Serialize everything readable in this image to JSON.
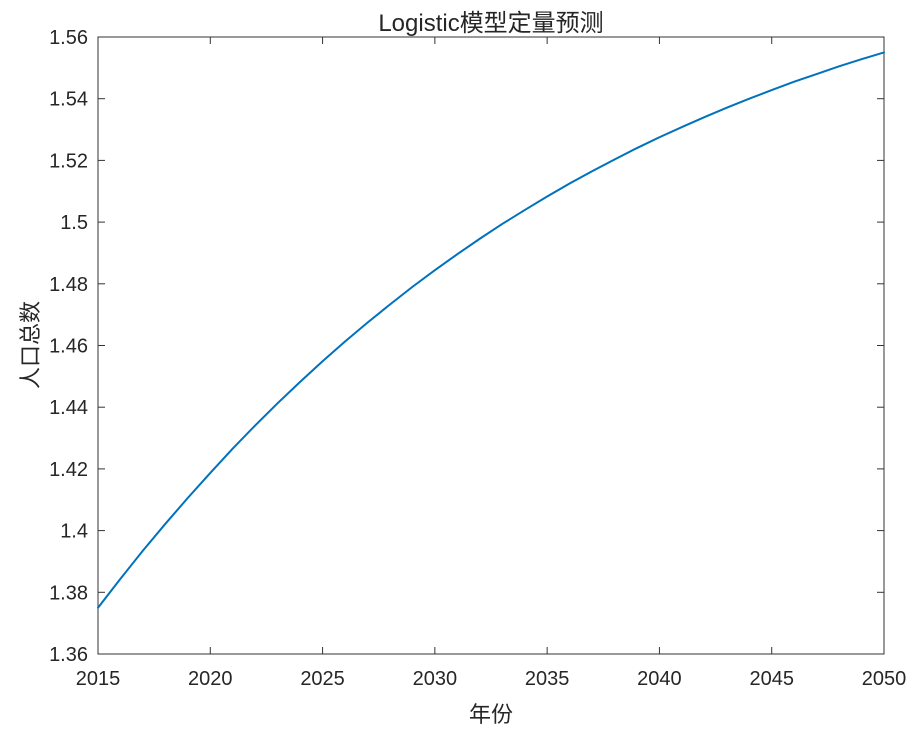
{
  "figure": {
    "background_color": "#ffffff"
  },
  "chart_data": {
    "type": "line",
    "title": "Logistic模型定量预测",
    "xlabel": "年份",
    "ylabel": "人口总数",
    "xlim": [
      2015,
      2050
    ],
    "ylim": [
      1.36,
      1.56
    ],
    "xticks": [
      2015,
      2020,
      2025,
      2030,
      2035,
      2040,
      2045,
      2050
    ],
    "xtick_labels": [
      "2015",
      "2020",
      "2025",
      "2030",
      "2035",
      "2040",
      "2045",
      "2050"
    ],
    "yticks": [
      1.36,
      1.38,
      1.4,
      1.42,
      1.44,
      1.46,
      1.48,
      1.5,
      1.52,
      1.54,
      1.56
    ],
    "ytick_labels": [
      "1.36",
      "1.38",
      "1.4",
      "1.42",
      "1.44",
      "1.46",
      "1.48",
      "1.5",
      "1.52",
      "1.54",
      "1.56"
    ],
    "grid": false,
    "legend": null,
    "line_color": "#0072BD",
    "line_width": 2,
    "axis_color": "#333333",
    "tick_label_color": "#262626",
    "series": [
      {
        "x": [
          2015,
          2016,
          2017,
          2018,
          2019,
          2020,
          2021,
          2022,
          2023,
          2024,
          2025,
          2026,
          2027,
          2028,
          2029,
          2030,
          2031,
          2032,
          2033,
          2034,
          2035,
          2036,
          2037,
          2038,
          2039,
          2040,
          2041,
          2042,
          2043,
          2044,
          2045,
          2046,
          2047,
          2048,
          2049,
          2050
        ],
        "values": [
          1.375,
          1.3844,
          1.3935,
          1.4022,
          1.4106,
          1.4187,
          1.4266,
          1.4341,
          1.4413,
          1.4482,
          1.4549,
          1.4613,
          1.4674,
          1.4733,
          1.479,
          1.4844,
          1.4896,
          1.4946,
          1.4994,
          1.5039,
          1.5083,
          1.5125,
          1.5165,
          1.5203,
          1.524,
          1.5275,
          1.5308,
          1.534,
          1.5371,
          1.54,
          1.5428,
          1.5455,
          1.548,
          1.5505,
          1.5528,
          1.555
        ]
      }
    ]
  }
}
